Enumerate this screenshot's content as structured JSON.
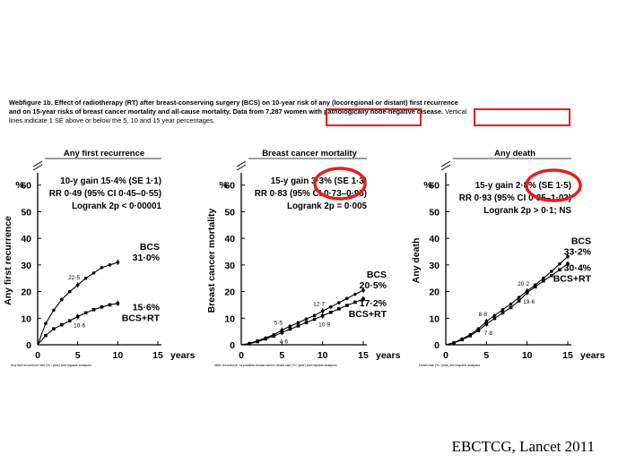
{
  "caption": {
    "line1": "Webfigure 1b. Effect of radiotherapy (RT) after breast-conserving surgery (BCS) on 10-year risk of any (locoregional or distant) first recurrence",
    "line2a": "and on 15-year risks of breast cancer mortality and all-cause mortality. Data from 7,287 women with pathologically node-negative disease.",
    "line2b": " Vertical",
    "line3": "lines indicate 1 SE above or below the 5, 10 and 15 year percentages."
  },
  "citation": "EBCTCG, Lancet 2011",
  "colors": {
    "highlight": "#e41e1e"
  },
  "percent_label": "%",
  "years_label": "years",
  "chart_data": [
    {
      "type": "line",
      "title": "Any first recurrence",
      "ylabel": "Any first recurrence",
      "xlabel": "years",
      "xlim": [
        0,
        15
      ],
      "ylim": [
        0,
        70
      ],
      "xticks": [
        0,
        5,
        10,
        15
      ],
      "yticks": [
        0,
        10,
        20,
        30,
        40,
        50,
        60
      ],
      "stats": [
        "10-y gain 15·4% (SE 1·1)",
        "RR 0·49 (95% CI 0·45–0·55)",
        "Logrank 2p < 0·00001"
      ],
      "footnote": "Any first recurrence rate (% / year) and logrank analyses",
      "series": [
        {
          "name": "BCS",
          "end_label": "31·0%",
          "marker": "circle",
          "x": [
            0,
            1,
            2,
            3,
            4,
            5,
            6,
            7,
            8,
            9,
            10
          ],
          "values": [
            0,
            8,
            13,
            17,
            20,
            22.5,
            25,
            27,
            29,
            30,
            31
          ]
        },
        {
          "name": "BCS+RT",
          "end_label": "15·6%",
          "marker": "square",
          "x": [
            0,
            1,
            2,
            3,
            4,
            5,
            6,
            7,
            8,
            9,
            10
          ],
          "values": [
            0,
            3.5,
            6,
            7.5,
            9,
            10.6,
            12,
            13.2,
            14.2,
            15,
            15.6
          ]
        }
      ],
      "annotations": [
        {
          "text": "22·5",
          "x": 5,
          "y": 22.5,
          "series": 0
        },
        {
          "text": "10·6",
          "x": 5,
          "y": 10.6,
          "series": 1
        }
      ]
    },
    {
      "type": "line",
      "title": "Breast cancer mortality",
      "ylabel": "Breast cancer mortality",
      "xlabel": "years",
      "xlim": [
        0,
        15
      ],
      "ylim": [
        0,
        70
      ],
      "xticks": [
        0,
        5,
        10,
        15
      ],
      "yticks": [
        0,
        10,
        20,
        30,
        40,
        50,
        60
      ],
      "stats": [
        "15-y gain 3·3% (SE 1·3)",
        "RR 0·83 (95% CI 0·73–0·95)",
        "Logrank 2p = 0·005"
      ],
      "footnote": "After recurrence, or possible breast cancer death rate (% / year) and logrank analyses",
      "series": [
        {
          "name": "BCS",
          "end_label": "20·5%",
          "marker": "circle",
          "x": [
            0,
            1,
            2,
            3,
            4,
            5,
            6,
            7,
            8,
            9,
            10,
            11,
            12,
            13,
            14,
            15
          ],
          "values": [
            0,
            0.5,
            1.5,
            2.6,
            3.8,
            5.5,
            7,
            8.3,
            9.7,
            11,
            12.7,
            14.2,
            15.8,
            17.4,
            19,
            20.5
          ]
        },
        {
          "name": "BCS+RT",
          "end_label": "17·2%",
          "marker": "square",
          "x": [
            0,
            1,
            2,
            3,
            4,
            5,
            6,
            7,
            8,
            9,
            10,
            11,
            12,
            13,
            14,
            15
          ],
          "values": [
            0,
            0.4,
            1.2,
            2.2,
            3.3,
            4.6,
            5.9,
            7.1,
            8.4,
            9.6,
            10.9,
            12.2,
            13.5,
            14.8,
            16,
            17.2
          ]
        }
      ],
      "annotations": [
        {
          "text": "5·5",
          "x": 5,
          "y": 5.5,
          "series": 0
        },
        {
          "text": "4·6",
          "x": 5,
          "y": 4.6,
          "series": 1
        },
        {
          "text": "12·7",
          "x": 10,
          "y": 12.7,
          "series": 0
        },
        {
          "text": "10·9",
          "x": 10,
          "y": 10.9,
          "series": 1
        }
      ]
    },
    {
      "type": "line",
      "title": "Any death",
      "ylabel": "Any death",
      "xlabel": "years",
      "xlim": [
        0,
        15
      ],
      "ylim": [
        0,
        70
      ],
      "xticks": [
        0,
        5,
        10,
        15
      ],
      "yticks": [
        0,
        10,
        20,
        30,
        40,
        50,
        60
      ],
      "stats": [
        "15-y gain 2·8% (SE 1·5)",
        "RR 0·93 (95% CI 0·85–1·03)",
        "Logrank 2p > 0·1; NS"
      ],
      "footnote": "Death rate (% / year) and logrank analyses",
      "series": [
        {
          "name": "BCS",
          "end_label": "33·2%",
          "marker": "circle",
          "x": [
            0,
            1,
            2,
            3,
            4,
            5,
            6,
            7,
            8,
            9,
            10,
            11,
            12,
            13,
            14,
            15
          ],
          "values": [
            0,
            0.8,
            2.2,
            3.8,
            6,
            8.8,
            11,
            13.2,
            15.3,
            17.8,
            20.2,
            22.5,
            25,
            27.6,
            30.4,
            33.2
          ]
        },
        {
          "name": "BCS+RT",
          "end_label": "30·4%",
          "marker": "square",
          "x": [
            0,
            1,
            2,
            3,
            4,
            5,
            6,
            7,
            8,
            9,
            10,
            11,
            12,
            13,
            14,
            15
          ],
          "values": [
            0,
            0.7,
            1.9,
            3.4,
            5.3,
            7.8,
            9.9,
            12,
            14,
            16.5,
            19.6,
            21.8,
            24,
            26,
            28.2,
            30.4
          ]
        }
      ],
      "annotations": [
        {
          "text": "8·8",
          "x": 5,
          "y": 8.8,
          "series": 0
        },
        {
          "text": "7·8",
          "x": 5,
          "y": 7.8,
          "series": 1
        },
        {
          "text": "20·2",
          "x": 10,
          "y": 20.2,
          "series": 0
        },
        {
          "text": "19·6",
          "x": 10,
          "y": 19.6,
          "series": 1
        }
      ]
    }
  ]
}
